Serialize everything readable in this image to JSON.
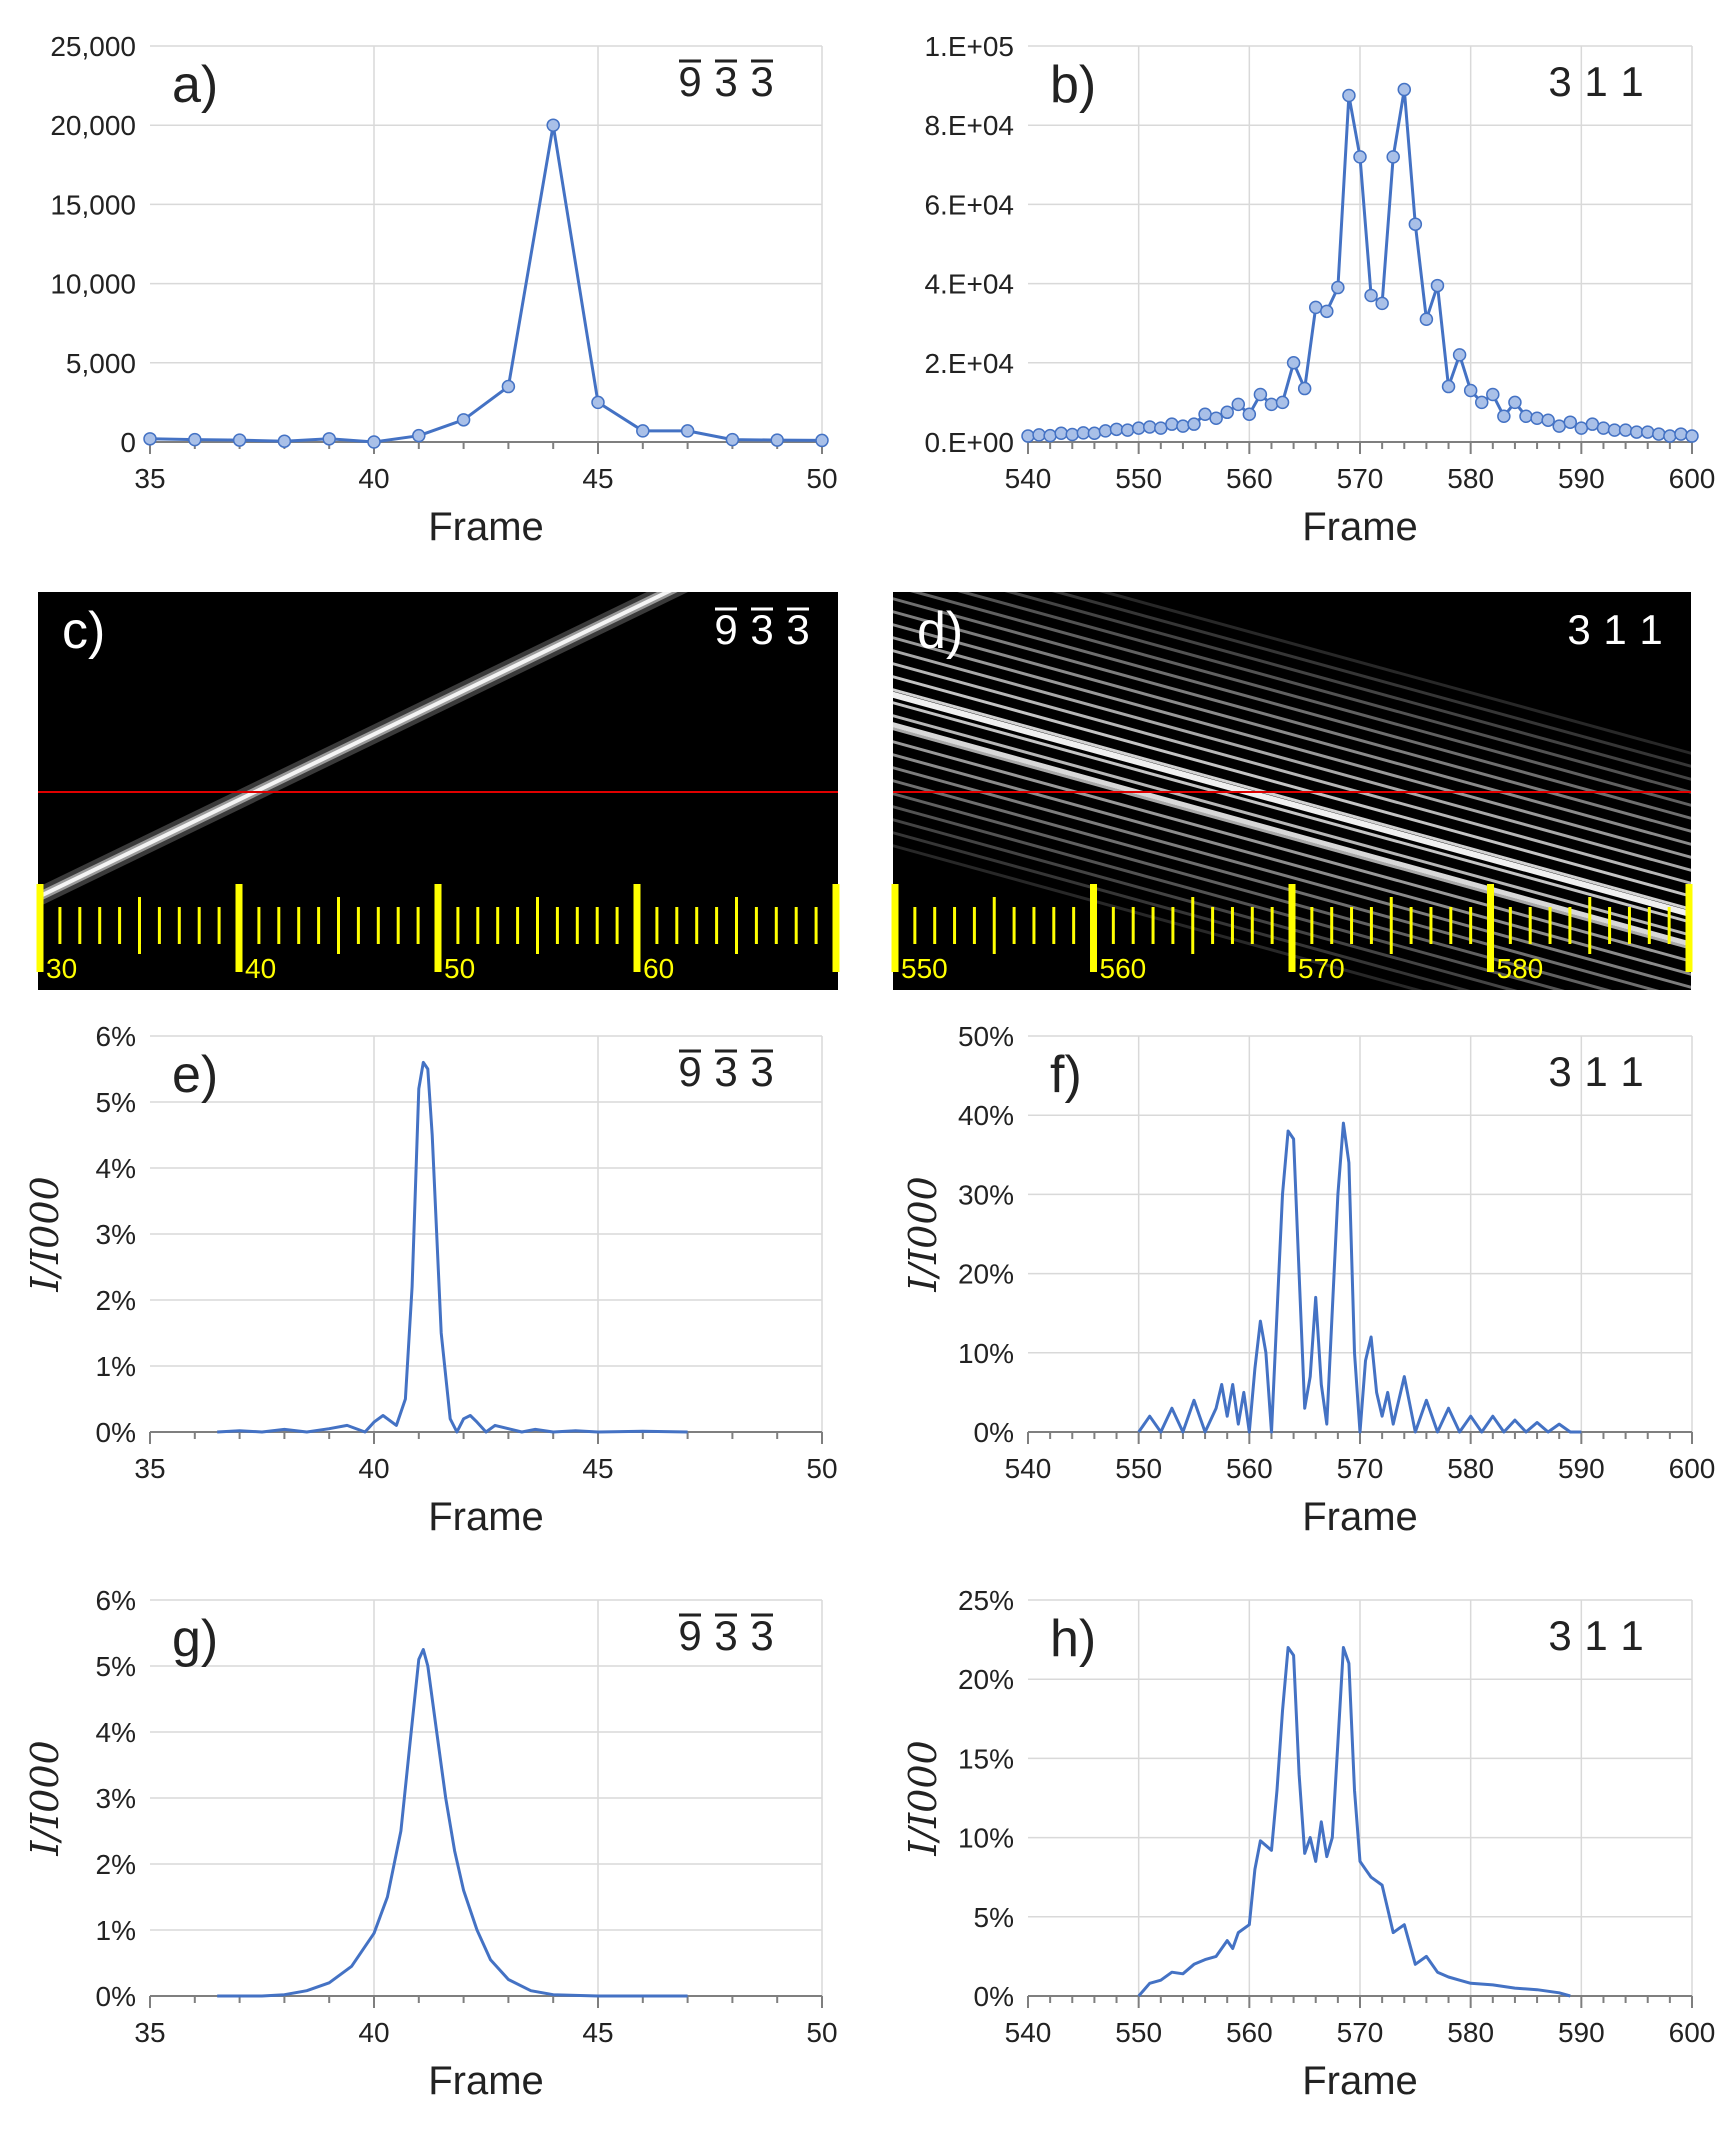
{
  "chart_data": [
    {
      "id": "a",
      "type": "line",
      "label": "a)",
      "hkl": [
        {
          "t": "9",
          "bar": true
        },
        {
          "t": "3",
          "bar": true
        },
        {
          "t": "3",
          "bar": true
        }
      ],
      "xlabel": "Frame",
      "ylabel": "",
      "xlim": [
        35,
        50
      ],
      "ylim": [
        0,
        25000
      ],
      "xticks": [
        35,
        40,
        45,
        50
      ],
      "xtick_labels": [
        "35",
        "40",
        "45",
        "50"
      ],
      "yticks": [
        0,
        5000,
        10000,
        15000,
        20000,
        25000
      ],
      "ytick_labels": [
        "0",
        "5,000",
        "10,000",
        "15,000",
        "20,000",
        "25,000"
      ],
      "markers": true,
      "x": [
        35,
        36,
        37,
        38,
        39,
        40,
        41,
        42,
        43,
        44,
        45,
        46,
        47,
        48,
        49,
        50
      ],
      "y": [
        200,
        150,
        120,
        50,
        200,
        0,
        400,
        1400,
        3500,
        20000,
        2500,
        700,
        700,
        150,
        120,
        100
      ]
    },
    {
      "id": "b",
      "type": "line",
      "label": "b)",
      "hkl": [
        {
          "t": "3"
        },
        {
          "t": "1"
        },
        {
          "t": "1"
        }
      ],
      "xlabel": "Frame",
      "ylabel": "",
      "xlim": [
        540,
        600
      ],
      "ylim": [
        0,
        100000
      ],
      "xticks": [
        540,
        550,
        560,
        570,
        580,
        590,
        600
      ],
      "xtick_labels": [
        "540",
        "550",
        "560",
        "570",
        "580",
        "590",
        "600"
      ],
      "yticks": [
        0,
        20000,
        40000,
        60000,
        80000,
        100000
      ],
      "ytick_labels": [
        "0.E+00",
        "2.E+04",
        "4.E+04",
        "6.E+04",
        "8.E+04",
        "1.E+05"
      ],
      "markers": true,
      "x": [
        540,
        541,
        542,
        543,
        544,
        545,
        546,
        547,
        548,
        549,
        550,
        551,
        552,
        553,
        554,
        555,
        556,
        557,
        558,
        559,
        560,
        561,
        562,
        563,
        564,
        565,
        566,
        567,
        568,
        569,
        570,
        571,
        572,
        573,
        574,
        575,
        576,
        577,
        578,
        579,
        580,
        581,
        582,
        583,
        584,
        585,
        586,
        587,
        588,
        589,
        590,
        591,
        592,
        593,
        594,
        595,
        596,
        597,
        598,
        599,
        600
      ],
      "y": [
        1500,
        1800,
        1600,
        2200,
        1900,
        2300,
        2200,
        2800,
        3200,
        3000,
        3500,
        3800,
        3500,
        4500,
        4000,
        4500,
        7000,
        6000,
        7500,
        9500,
        7000,
        12000,
        9500,
        10000,
        20000,
        13500,
        34000,
        33000,
        39000,
        87500,
        72000,
        37000,
        35000,
        72000,
        89000,
        55000,
        31000,
        39500,
        14000,
        22000,
        13000,
        10000,
        12000,
        6500,
        10000,
        6500,
        6000,
        5500,
        4000,
        5000,
        3500,
        4500,
        3500,
        3000,
        3000,
        2500,
        2500,
        2000,
        1500,
        2000,
        1500
      ]
    },
    {
      "id": "e",
      "type": "line",
      "label": "e)",
      "hkl": [
        {
          "t": "9",
          "bar": true
        },
        {
          "t": "3",
          "bar": true
        },
        {
          "t": "3",
          "bar": true
        }
      ],
      "xlabel": "Frame",
      "ylabel": "I/I000",
      "xlim": [
        35,
        50
      ],
      "ylim": [
        0,
        6
      ],
      "xticks": [
        35,
        40,
        45,
        50
      ],
      "xtick_labels": [
        "35",
        "40",
        "45",
        "50"
      ],
      "yticks": [
        0,
        1,
        2,
        3,
        4,
        5,
        6
      ],
      "ytick_labels": [
        "0%",
        "1%",
        "2%",
        "3%",
        "4%",
        "5%",
        "6%"
      ],
      "markers": false,
      "x": [
        36.5,
        37,
        37.5,
        38,
        38.5,
        39,
        39.4,
        39.8,
        40,
        40.2,
        40.5,
        40.7,
        40.85,
        41,
        41.1,
        41.2,
        41.3,
        41.5,
        41.7,
        41.85,
        42,
        42.15,
        42.3,
        42.5,
        42.7,
        43,
        43.3,
        43.6,
        44,
        44.5,
        45,
        46,
        47
      ],
      "y": [
        0,
        0.02,
        0,
        0.04,
        0,
        0.05,
        0.1,
        0,
        0.15,
        0.25,
        0.1,
        0.5,
        2.2,
        5.2,
        5.6,
        5.5,
        4.5,
        1.5,
        0.2,
        0,
        0.2,
        0.25,
        0.15,
        0,
        0.1,
        0.05,
        0,
        0.04,
        0,
        0.02,
        0,
        0.01,
        0
      ]
    },
    {
      "id": "f",
      "type": "line",
      "label": "f)",
      "hkl": [
        {
          "t": "3"
        },
        {
          "t": "1"
        },
        {
          "t": "1"
        }
      ],
      "xlabel": "Frame",
      "ylabel": "I/I000",
      "xlim": [
        540,
        600
      ],
      "ylim": [
        0,
        50
      ],
      "xticks": [
        540,
        550,
        560,
        570,
        580,
        590,
        600
      ],
      "xtick_labels": [
        "540",
        "550",
        "560",
        "570",
        "580",
        "590",
        "600"
      ],
      "yticks": [
        0,
        10,
        20,
        30,
        40,
        50
      ],
      "ytick_labels": [
        "0%",
        "10%",
        "20%",
        "30%",
        "40%",
        "50%"
      ],
      "markers": false,
      "x": [
        550,
        551,
        552,
        553,
        554,
        555,
        556,
        557,
        557.5,
        558,
        558.5,
        559,
        559.5,
        560,
        560.5,
        561,
        561.5,
        562,
        563,
        563.5,
        564,
        564.5,
        565,
        565.5,
        566,
        566.5,
        567,
        568,
        568.5,
        569,
        569.5,
        570,
        570.5,
        571,
        571.5,
        572,
        572.5,
        573,
        574,
        575,
        576,
        577,
        578,
        579,
        580,
        581,
        582,
        583,
        584,
        585,
        586,
        587,
        588,
        589,
        590
      ],
      "y": [
        0,
        2,
        0,
        3,
        0,
        4,
        0,
        3,
        6,
        2,
        6,
        1,
        5,
        0,
        8,
        14,
        10,
        0,
        30,
        38,
        37,
        20,
        3,
        7,
        17,
        6,
        1,
        30,
        39,
        34,
        10,
        0,
        9,
        12,
        5,
        2,
        5,
        1,
        7,
        0,
        4,
        0,
        3,
        0,
        2,
        0,
        2,
        0,
        1.5,
        0,
        1.2,
        0,
        1,
        0,
        0
      ]
    },
    {
      "id": "g",
      "type": "line",
      "label": "g)",
      "hkl": [
        {
          "t": "9",
          "bar": true
        },
        {
          "t": "3",
          "bar": true
        },
        {
          "t": "3",
          "bar": true
        }
      ],
      "xlabel": "Frame",
      "ylabel": "I/I000",
      "xlim": [
        35,
        50
      ],
      "ylim": [
        0,
        6
      ],
      "xticks": [
        35,
        40,
        45,
        50
      ],
      "xtick_labels": [
        "35",
        "40",
        "45",
        "50"
      ],
      "yticks": [
        0,
        1,
        2,
        3,
        4,
        5,
        6
      ],
      "ytick_labels": [
        "0%",
        "1%",
        "2%",
        "3%",
        "4%",
        "5%",
        "6%"
      ],
      "markers": false,
      "x": [
        36.5,
        37.5,
        38,
        38.5,
        39,
        39.5,
        40,
        40.3,
        40.6,
        40.8,
        41,
        41.1,
        41.2,
        41.4,
        41.6,
        41.8,
        42,
        42.3,
        42.6,
        43,
        43.5,
        44,
        45,
        46,
        47
      ],
      "y": [
        0,
        0,
        0.02,
        0.08,
        0.2,
        0.45,
        0.95,
        1.5,
        2.5,
        3.8,
        5.1,
        5.25,
        5.0,
        4.0,
        3.0,
        2.2,
        1.6,
        1.0,
        0.55,
        0.25,
        0.08,
        0.02,
        0,
        0,
        0
      ]
    },
    {
      "id": "h",
      "type": "line",
      "label": "h)",
      "hkl": [
        {
          "t": "3"
        },
        {
          "t": "1"
        },
        {
          "t": "1"
        }
      ],
      "xlabel": "Frame",
      "ylabel": "I/I000",
      "xlim": [
        540,
        600
      ],
      "ylim": [
        0,
        25
      ],
      "xticks": [
        540,
        550,
        560,
        570,
        580,
        590,
        600
      ],
      "xtick_labels": [
        "540",
        "550",
        "560",
        "570",
        "580",
        "590",
        "600"
      ],
      "yticks": [
        0,
        5,
        10,
        15,
        20,
        25
      ],
      "ytick_labels": [
        "0%",
        "5%",
        "10%",
        "15%",
        "20%",
        "25%"
      ],
      "markers": false,
      "x": [
        550,
        551,
        552,
        553,
        554,
        555,
        556,
        557,
        558,
        558.5,
        559,
        560,
        560.5,
        561,
        562,
        562.5,
        563,
        563.5,
        564,
        564.5,
        565,
        565.5,
        566,
        566.5,
        567,
        567.5,
        568,
        568.5,
        569,
        569.5,
        570,
        570.5,
        571,
        572,
        572.5,
        573,
        574,
        575,
        576,
        577,
        578,
        579,
        580,
        582,
        584,
        586,
        588,
        589
      ],
      "y": [
        0,
        0.8,
        1,
        1.5,
        1.4,
        2,
        2.3,
        2.5,
        3.5,
        3,
        4,
        4.5,
        8,
        9.8,
        9.2,
        13,
        18,
        22,
        21.5,
        14,
        9,
        10,
        8.5,
        11,
        8.8,
        10,
        16,
        22,
        21,
        13,
        8.5,
        8,
        7.5,
        7,
        5.5,
        4,
        4.5,
        2,
        2.5,
        1.5,
        1.2,
        1,
        0.8,
        0.7,
        0.5,
        0.4,
        0.2,
        0
      ]
    }
  ],
  "images": [
    {
      "id": "c",
      "label": "c)",
      "hkl": [
        {
          "t": "9",
          "bar": true
        },
        {
          "t": "3",
          "bar": true
        },
        {
          "t": "3",
          "bar": true
        }
      ],
      "scale": {
        "start": 30,
        "end": 70,
        "major_every": 10,
        "minor_every": 1,
        "labels": [
          "30",
          "40",
          "50",
          "60"
        ]
      }
    },
    {
      "id": "d",
      "label": "d)",
      "hkl": [
        {
          "t": "3"
        },
        {
          "t": "1"
        },
        {
          "t": "1"
        }
      ],
      "scale": {
        "start": 550,
        "end": 590,
        "major_every": 10,
        "minor_every": 1,
        "labels": [
          "550",
          "560",
          "570",
          "580"
        ]
      }
    }
  ],
  "colors": {
    "line": "#4472c4",
    "marker_fill": "#a9c0e8",
    "marker_edge": "#4472c4",
    "grid": "#d9d9d9",
    "axis": "#7f7f7f",
    "red_line": "#e00000",
    "yellow": "#ffff00"
  }
}
